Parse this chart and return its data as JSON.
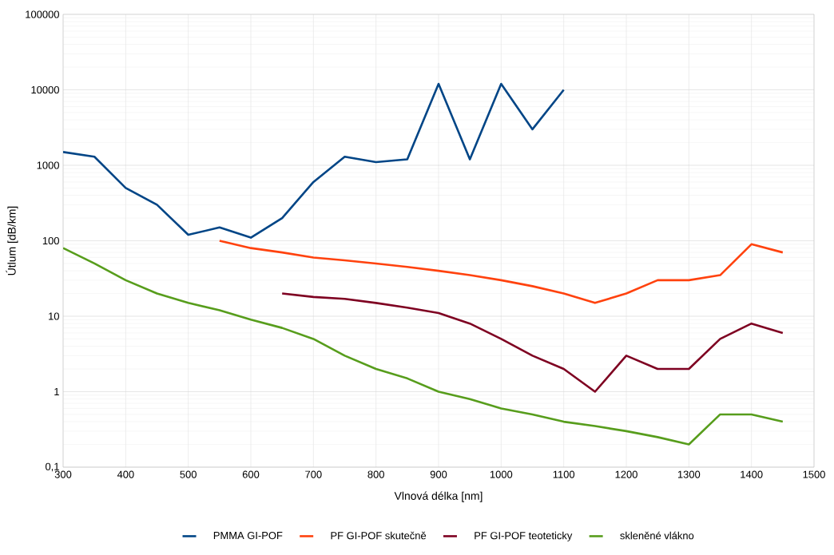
{
  "chart_data": {
    "type": "line",
    "xlabel": "Vlnová délka [nm]",
    "ylabel": "Útlum [dB/km]",
    "log": "y",
    "xlim": [
      300,
      1500
    ],
    "xticks": [
      300,
      400,
      500,
      600,
      700,
      800,
      900,
      1000,
      1100,
      1200,
      1300,
      1400,
      1500
    ],
    "ylim": [
      0.1,
      100000
    ],
    "yticks": [
      {
        "value": 0.1,
        "label": "0,1"
      },
      1,
      10,
      100,
      1000,
      10000,
      100000
    ],
    "grid": true,
    "legend": "bottom",
    "marker": "none",
    "line_style": "solid",
    "series": [
      {
        "name": "PMMA GI-POF",
        "color": "#004586",
        "x": [
          300,
          350,
          400,
          450,
          500,
          550,
          600,
          650,
          700,
          750,
          800,
          850,
          900,
          950,
          1000,
          1050,
          1100
        ],
        "values": [
          1500,
          1300,
          500,
          300,
          120,
          150,
          110,
          200,
          600,
          1300,
          1100,
          1200,
          12000,
          1200,
          12000,
          3000,
          10000
        ]
      },
      {
        "name": "PF GI-POF skutečně",
        "color": "#ff420e",
        "x": [
          550,
          600,
          650,
          700,
          750,
          800,
          850,
          900,
          950,
          1000,
          1050,
          1100,
          1150,
          1200,
          1250,
          1300,
          1350,
          1400,
          1450
        ],
        "values": [
          100,
          80,
          70,
          60,
          55,
          50,
          45,
          40,
          35,
          30,
          25,
          20,
          15,
          20,
          30,
          30,
          35,
          90,
          70
        ]
      },
      {
        "name": "PF GI-POF teoteticky",
        "color": "#7e0021",
        "x": [
          650,
          700,
          750,
          800,
          850,
          900,
          950,
          1000,
          1050,
          1100,
          1150,
          1200,
          1250,
          1300,
          1350,
          1400,
          1450
        ],
        "values": [
          20,
          18,
          17,
          15,
          13,
          11,
          8,
          5,
          3,
          2,
          1,
          3,
          2,
          2,
          5,
          8,
          6
        ]
      },
      {
        "name": "skleněné vlákno",
        "color": "#579d1c",
        "x": [
          300,
          350,
          400,
          450,
          500,
          550,
          600,
          650,
          700,
          750,
          800,
          850,
          900,
          950,
          1000,
          1050,
          1100,
          1150,
          1200,
          1250,
          1300,
          1350,
          1400,
          1450
        ],
        "values": [
          80,
          50,
          30,
          20,
          15,
          12,
          9,
          7,
          5,
          3,
          2,
          1.5,
          1,
          0.8,
          0.6,
          0.5,
          0.4,
          0.35,
          0.3,
          0.25,
          0.2,
          0.5,
          0.5,
          0.4
        ]
      }
    ]
  }
}
